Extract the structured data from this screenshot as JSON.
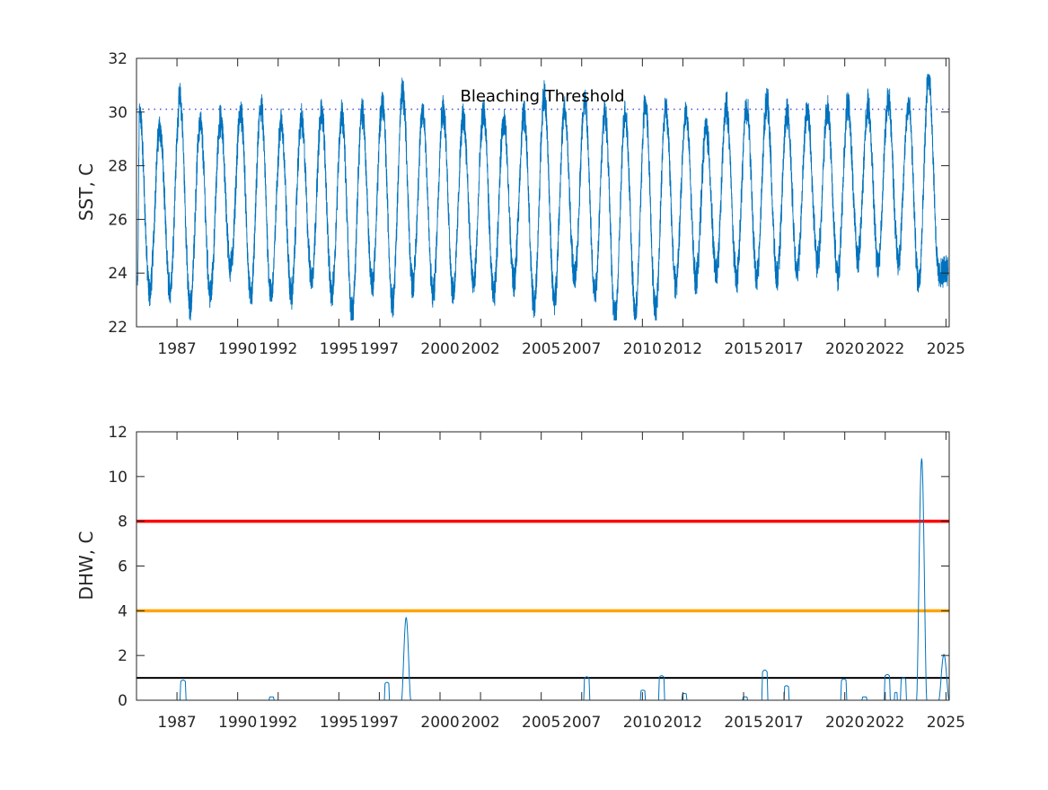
{
  "chart_data": [
    {
      "type": "line",
      "ylabel": "SST, C",
      "xlabel": "",
      "xlim": [
        "1985-01-01",
        "2025-03-01"
      ],
      "ylim": [
        22,
        32
      ],
      "yticks": [
        "22",
        "24",
        "26",
        "28",
        "30",
        "32"
      ],
      "xticks": [
        "1987",
        "1990",
        "1992",
        "1995",
        "1997",
        "2000",
        "2002",
        "2005",
        "2007",
        "2010",
        "2012",
        "2015",
        "2017",
        "2020",
        "2022",
        "2025"
      ],
      "grid": false,
      "series_color": "#0072bd",
      "threshold": {
        "label": "Bleaching Threshold",
        "value": 30.1,
        "color": "#0000cc"
      },
      "series": [
        {
          "note_points": "approximate monthly peaks (late Feb) and troughs (late Aug)",
          "t": [
            1985.05,
            1985.15,
            1985.65,
            1986.15,
            1986.65,
            1987.15,
            1987.65,
            1988.15,
            1988.65,
            1989.15,
            1989.65,
            1990.15,
            1990.65,
            1991.15,
            1991.65,
            1992.15,
            1992.65,
            1993.15,
            1993.65,
            1994.15,
            1994.65,
            1995.15,
            1995.65,
            1996.15,
            1996.65,
            1997.15,
            1997.65,
            1998.15,
            1998.65,
            1999.15,
            1999.65,
            2000.15,
            2000.65,
            2001.15,
            2001.65,
            2002.15,
            2002.65,
            2003.15,
            2003.65,
            2004.15,
            2004.65,
            2005.15,
            2005.65,
            2006.15,
            2006.65,
            2007.15,
            2007.65,
            2008.15,
            2008.65,
            2009.15,
            2009.65,
            2010.15,
            2010.65,
            2011.15,
            2011.65,
            2012.15,
            2012.65,
            2013.15,
            2013.65,
            2014.15,
            2014.65,
            2015.15,
            2015.65,
            2016.15,
            2016.65,
            2017.15,
            2017.65,
            2018.15,
            2018.65,
            2019.15,
            2019.65,
            2020.15,
            2020.65,
            2021.15,
            2021.65,
            2022.15,
            2022.65,
            2023.15,
            2023.65,
            2024.15,
            2024.65,
            2025.1
          ],
          "v": [
            23.5,
            30.1,
            23.3,
            29.4,
            23.4,
            30.5,
            22.7,
            29.6,
            23.2,
            29.7,
            24.2,
            30.0,
            23.1,
            30.2,
            23.2,
            29.6,
            23.2,
            29.7,
            23.8,
            30.0,
            23.2,
            29.9,
            22.5,
            30.0,
            23.6,
            30.4,
            22.9,
            30.7,
            23.6,
            30.0,
            23.2,
            30.1,
            23.3,
            29.8,
            23.6,
            30.0,
            23.2,
            29.7,
            23.7,
            29.9,
            22.8,
            30.6,
            23.0,
            30.0,
            23.8,
            30.4,
            23.3,
            30.0,
            22.3,
            30.0,
            22.5,
            30.3,
            22.6,
            30.2,
            23.6,
            30.0,
            23.8,
            29.4,
            24.0,
            30.2,
            23.8,
            30.2,
            23.9,
            30.4,
            23.8,
            30.0,
            24.1,
            30.1,
            24.4,
            30.1,
            23.9,
            30.2,
            24.6,
            30.2,
            24.4,
            30.5,
            24.5,
            30.3,
            23.7,
            31.3,
            23.9,
            24.2
          ]
        }
      ]
    },
    {
      "type": "line",
      "ylabel": "DHW, C",
      "xlabel": "",
      "xlim": [
        "1985-01-01",
        "2025-03-01"
      ],
      "ylim": [
        0,
        12
      ],
      "yticks": [
        "0",
        "2",
        "4",
        "6",
        "8",
        "10",
        "12"
      ],
      "xticks": [
        "1987",
        "1990",
        "1992",
        "1995",
        "1997",
        "2000",
        "2002",
        "2005",
        "2007",
        "2010",
        "2012",
        "2015",
        "2017",
        "2020",
        "2022",
        "2025"
      ],
      "grid": false,
      "series_color": "#0072bd",
      "reference_lines": [
        {
          "value": 8,
          "color": "#ff0000"
        },
        {
          "value": 4,
          "color": "#ffa500"
        },
        {
          "value": 1,
          "color": "#000000"
        }
      ],
      "series": [
        {
          "events": [
            {
              "start": 1987.15,
              "end": 1987.45,
              "peak": 0.9
            },
            {
              "start": 1991.55,
              "end": 1991.8,
              "peak": 0.15
            },
            {
              "start": 1997.25,
              "end": 1997.5,
              "peak": 0.8
            },
            {
              "start": 1998.1,
              "end": 1998.55,
              "peak": 3.7
            },
            {
              "start": 2007.1,
              "end": 2007.4,
              "peak": 1.05
            },
            {
              "start": 2009.9,
              "end": 2010.15,
              "peak": 0.45
            },
            {
              "start": 2010.8,
              "end": 2011.1,
              "peak": 1.1
            },
            {
              "start": 2011.95,
              "end": 2012.2,
              "peak": 0.3
            },
            {
              "start": 2014.95,
              "end": 2015.2,
              "peak": 0.15
            },
            {
              "start": 2015.9,
              "end": 2016.2,
              "peak": 1.35
            },
            {
              "start": 2017.0,
              "end": 2017.25,
              "peak": 0.65
            },
            {
              "start": 2019.8,
              "end": 2020.1,
              "peak": 0.95
            },
            {
              "start": 2020.85,
              "end": 2021.1,
              "peak": 0.15
            },
            {
              "start": 2021.95,
              "end": 2022.25,
              "peak": 1.15
            },
            {
              "start": 2022.45,
              "end": 2022.6,
              "peak": 0.35
            },
            {
              "start": 2022.75,
              "end": 2023.05,
              "peak": 1.0
            },
            {
              "start": 2023.55,
              "end": 2024.05,
              "peak": 10.8
            },
            {
              "start": 2024.65,
              "end": 2025.15,
              "peak": 2.05
            }
          ]
        }
      ]
    }
  ]
}
